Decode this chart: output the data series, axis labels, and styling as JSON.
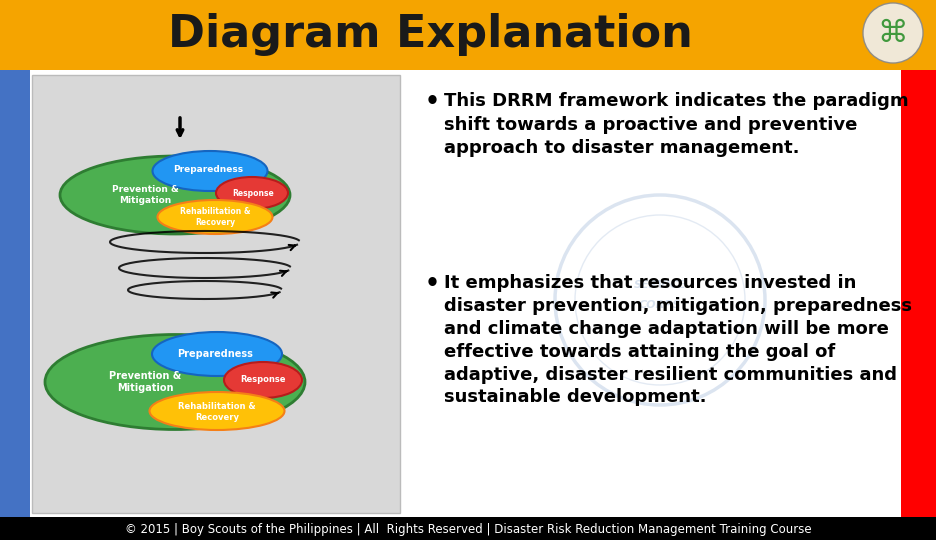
{
  "title": "Diagram Explanation",
  "title_bg_color": "#F5A400",
  "title_font_color": "#1a1a1a",
  "title_fontsize": 32,
  "slide_bg_color": "#ffffff",
  "left_bar_color": "#4472C4",
  "right_bar_color": "#FF0000",
  "bottom_bar_color": "#000000",
  "bullet1": "This DRRM framework indicates the paradigm shift towards a proactive and preventive approach to disaster management.",
  "bullet2": "It emphasizes that resources invested in disaster prevention, mitigation, preparedness and climate change adaptation will be more effective towards attaining the goal of adaptive, disaster resilient communities and sustainable development.",
  "bullet_fontsize": 13.0,
  "footer_text": "© 2015 | Boy Scouts of the Philippines | All  Rights Reserved | Disaster Risk Reduction Management Training Course",
  "footer_color": "#ffffff",
  "footer_fontsize": 8.5,
  "green_color": "#4CAF50",
  "green_dark": "#2e7d32",
  "blue_color": "#2196F3",
  "blue_dark": "#1565c0",
  "red_color": "#E53935",
  "red_dark": "#b71c1c",
  "yellow_color": "#FFC107",
  "yellow_dark": "#f57f17",
  "watermark_color": "#b0c4de",
  "diag_bg_color": "#d8d8d8"
}
